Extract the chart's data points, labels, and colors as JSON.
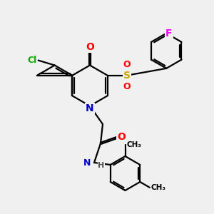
{
  "bg_color": "#f0f0f0",
  "atom_colors": {
    "N": "#0000cc",
    "O": "#ff0000",
    "S": "#ccaa00",
    "Cl": "#00aa00",
    "F": "#ff00ff",
    "C": "#000000"
  },
  "bond_lw": 1.6,
  "fig_size": [
    3.0,
    3.0
  ],
  "dpi": 100,
  "xlim": [
    0.5,
    10.5
  ],
  "ylim": [
    0.5,
    10.5
  ]
}
